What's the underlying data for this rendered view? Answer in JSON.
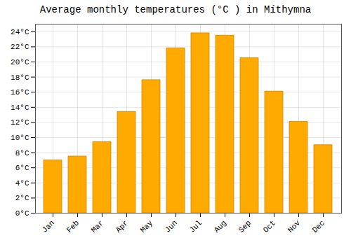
{
  "chart_data": {
    "type": "bar",
    "title": "Average monthly temperatures (°C ) in Míthymna",
    "categories": [
      "Jan",
      "Feb",
      "Mar",
      "Apr",
      "May",
      "Jun",
      "Jul",
      "Aug",
      "Sep",
      "Oct",
      "Nov",
      "Dec"
    ],
    "values": [
      7.0,
      7.5,
      9.4,
      13.4,
      17.6,
      21.8,
      23.8,
      23.5,
      20.5,
      16.1,
      12.1,
      9.0
    ],
    "color": "#FFAA00",
    "ylim": [
      0,
      25
    ],
    "yticks": [
      {
        "value": 0,
        "label": "0°C"
      },
      {
        "value": 2,
        "label": "2°C"
      },
      {
        "value": 4,
        "label": "4°C"
      },
      {
        "value": 6,
        "label": "6°C"
      },
      {
        "value": 8,
        "label": "8°C"
      },
      {
        "value": 10,
        "label": "10°C"
      },
      {
        "value": 12,
        "label": "12°C"
      },
      {
        "value": 14,
        "label": "14°C"
      },
      {
        "value": 16,
        "label": "16°C"
      },
      {
        "value": 18,
        "label": "18°C"
      },
      {
        "value": 20,
        "label": "20°C"
      },
      {
        "value": 22,
        "label": "22°C"
      },
      {
        "value": 24,
        "label": "24°C"
      }
    ],
    "grid": true
  }
}
